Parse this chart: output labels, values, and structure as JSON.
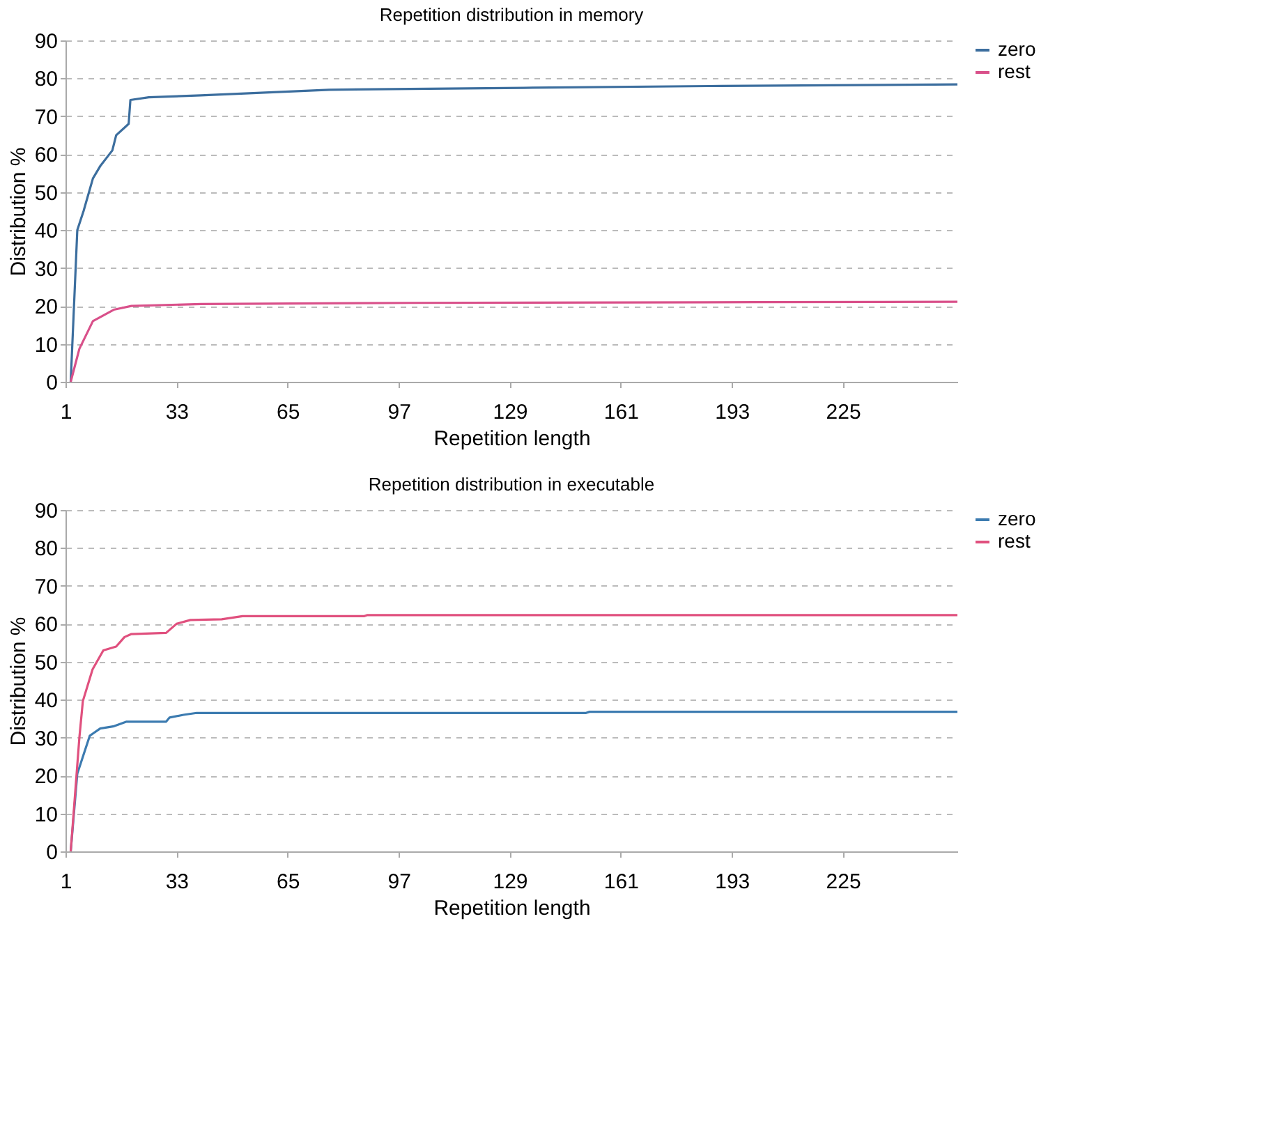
{
  "chart_data": [
    {
      "type": "line",
      "title": "Repetition distribution in memory",
      "xlabel": "Repetition length",
      "ylabel": "Distribution %",
      "xlim": [
        1,
        258
      ],
      "xticks": [
        1,
        33,
        65,
        97,
        129,
        161,
        193,
        225
      ],
      "ylim": [
        0,
        90
      ],
      "yticks": [
        0,
        10,
        20,
        30,
        40,
        50,
        60,
        70,
        80,
        90
      ],
      "grid": "y",
      "legend": "right",
      "line_style": "solid",
      "series": [
        {
          "name": "zero",
          "color": "#3c6e9e",
          "x": [
            2.5,
            4.4,
            6.2,
            8.9,
            11.1,
            14.5,
            15.6,
            18.6,
            19.2,
            19.7,
            25,
            40,
            77,
            133,
            190,
            258
          ],
          "values": [
            0,
            40,
            45,
            53.6,
            57,
            61,
            65,
            67.5,
            68,
            74.3,
            75,
            75.5,
            77,
            77.5,
            78,
            78.4
          ]
        },
        {
          "name": "rest",
          "color": "#d9508a",
          "x": [
            2.5,
            5,
            8.9,
            14.9,
            20,
            40,
            100,
            200,
            258
          ],
          "values": [
            0,
            8.7,
            16,
            19,
            20,
            20.5,
            20.8,
            21,
            21.1
          ]
        }
      ]
    },
    {
      "type": "line",
      "title": "Repetition distribution in executable",
      "xlabel": "Repetition length",
      "ylabel": "Distribution %",
      "xlim": [
        1,
        258
      ],
      "xticks": [
        1,
        33,
        65,
        97,
        129,
        161,
        193,
        225
      ],
      "ylim": [
        0,
        90
      ],
      "yticks": [
        0,
        10,
        20,
        30,
        40,
        50,
        60,
        70,
        80,
        90
      ],
      "grid": "y",
      "legend": "right",
      "line_style": "solid",
      "series": [
        {
          "name": "zero",
          "color": "#3c7bb0",
          "x": [
            2.5,
            4.4,
            8,
            11,
            15,
            18.6,
            30,
            31,
            35,
            38.8,
            151,
            152,
            258
          ],
          "values": [
            0,
            20.5,
            30.5,
            32.4,
            33,
            34.2,
            34.2,
            35.3,
            36,
            36.5,
            36.5,
            36.8,
            36.8
          ]
        },
        {
          "name": "rest",
          "color": "#e0507e",
          "x": [
            2.5,
            5,
            6,
            8.8,
            11.9,
            15.6,
            18,
            20,
            30,
            33,
            37,
            46,
            52,
            87,
            88,
            258
          ],
          "values": [
            0,
            30,
            39.6,
            48,
            53,
            54,
            56.5,
            57.3,
            57.6,
            60,
            61,
            61.2,
            62,
            62,
            62.3,
            62.3
          ]
        }
      ]
    }
  ]
}
